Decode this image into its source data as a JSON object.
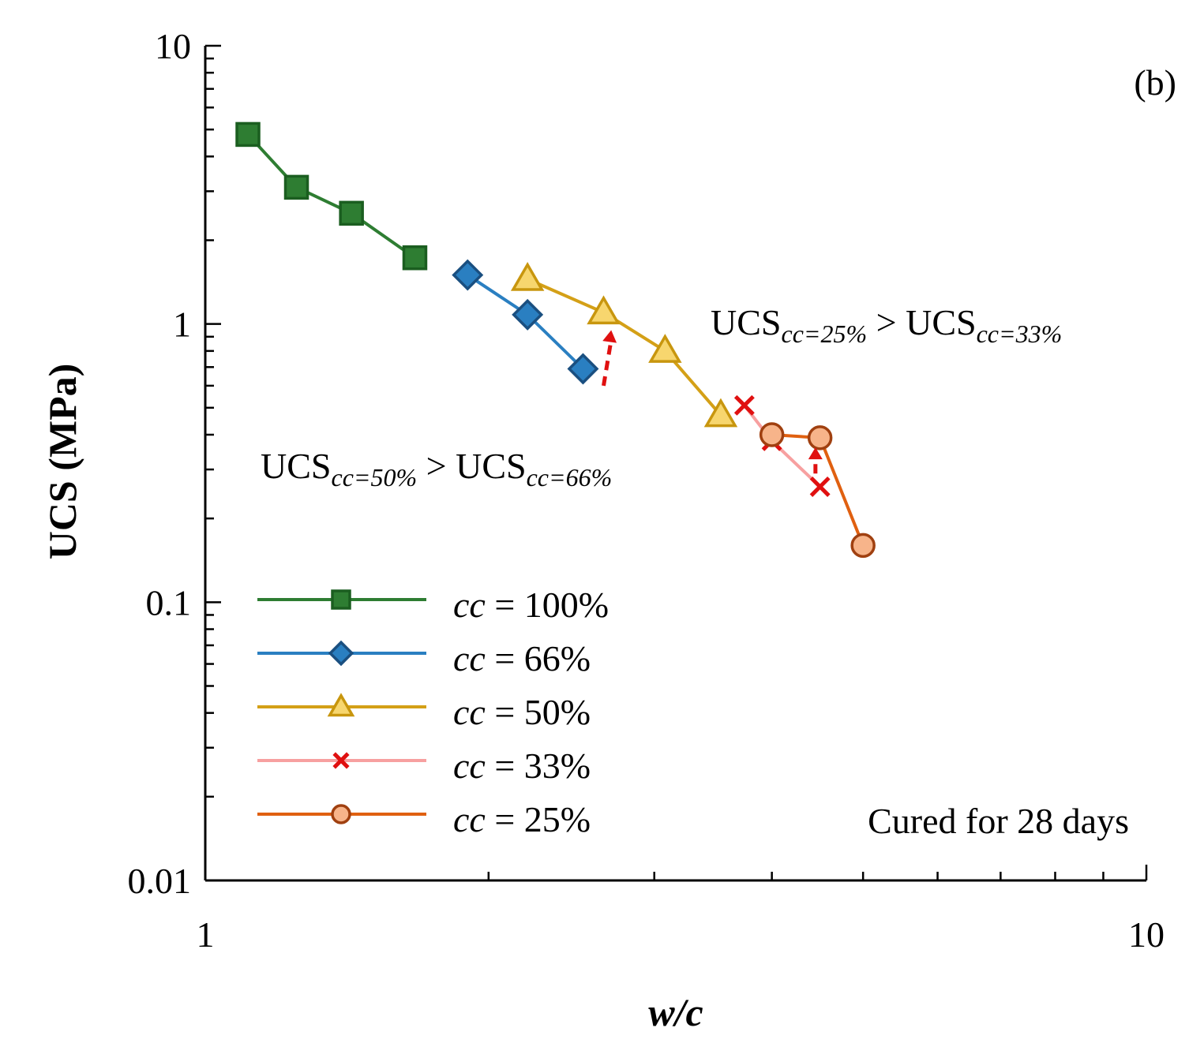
{
  "chart_data": {
    "type": "line",
    "panel_label": "(b)",
    "xlabel": "w/c",
    "ylabel": "UCS (MPa)",
    "x_scale": "log",
    "y_scale": "log",
    "xlim": [
      1,
      10
    ],
    "ylim": [
      0.01,
      10
    ],
    "x_ticks": [
      {
        "value": 1,
        "label": "1"
      },
      {
        "value": 10,
        "label": "10"
      }
    ],
    "y_ticks": [
      {
        "value": 0.01,
        "label": "0.01"
      },
      {
        "value": 0.1,
        "label": "0.1"
      },
      {
        "value": 1,
        "label": "1"
      },
      {
        "value": 10,
        "label": "10"
      }
    ],
    "series": [
      {
        "name": "cc = 100%",
        "cc": "cc",
        "rest": " = 100%",
        "color": "#2e7d32",
        "fill": "#2e7d32",
        "stroke": "#1b5e20",
        "marker": "square",
        "points": [
          [
            1.11,
            4.8
          ],
          [
            1.25,
            3.1
          ],
          [
            1.43,
            2.5
          ],
          [
            1.67,
            1.73
          ]
        ]
      },
      {
        "name": "cc = 66%",
        "cc": "cc",
        "rest": " = 66%",
        "color": "#2a7fc1",
        "fill": "#2a7fc1",
        "stroke": "#1a4f80",
        "marker": "diamond",
        "points": [
          [
            1.9,
            1.5
          ],
          [
            2.2,
            1.08
          ],
          [
            2.52,
            0.69
          ]
        ]
      },
      {
        "name": "cc = 50%",
        "cc": "cc",
        "rest": " = 50%",
        "color": "#d4a017",
        "fill": "#f7d66e",
        "stroke": "#c8960e",
        "marker": "triangle",
        "points": [
          [
            2.2,
            1.45
          ],
          [
            2.65,
            1.1
          ],
          [
            3.08,
            0.8
          ],
          [
            3.53,
            0.47
          ]
        ]
      },
      {
        "name": "cc = 33%",
        "cc": "cc",
        "rest": " = 33%",
        "color": "#f7a0a0",
        "fill": "#e01010",
        "stroke": "#e01010",
        "marker": "x",
        "points": [
          [
            3.74,
            0.51
          ],
          [
            4.0,
            0.38
          ],
          [
            4.5,
            0.26
          ]
        ]
      },
      {
        "name": "cc = 25%",
        "cc": "cc",
        "rest": " = 25%",
        "color": "#e06010",
        "fill": "#f7b48a",
        "stroke": "#a04010",
        "marker": "circle",
        "points": [
          [
            4.0,
            0.4
          ],
          [
            4.5,
            0.39
          ],
          [
            5.0,
            0.16
          ]
        ]
      }
    ],
    "arrows": [
      {
        "from": [
          2.65,
          0.6
        ],
        "to": [
          2.7,
          0.95
        ],
        "color": "#e01010"
      },
      {
        "from": [
          4.45,
          0.29
        ],
        "to": [
          4.45,
          0.36
        ],
        "color": "#e01010"
      }
    ],
    "annotations": [
      {
        "base": "UCS",
        "sub": "cc=25%",
        "op": " > ",
        "base2": "UCS",
        "sub2": "cc=33%"
      },
      {
        "base": "UCS",
        "sub": "cc=50%",
        "op": " > ",
        "base2": "UCS",
        "sub2": "cc=66%"
      }
    ],
    "note": "Cured for 28 days"
  }
}
